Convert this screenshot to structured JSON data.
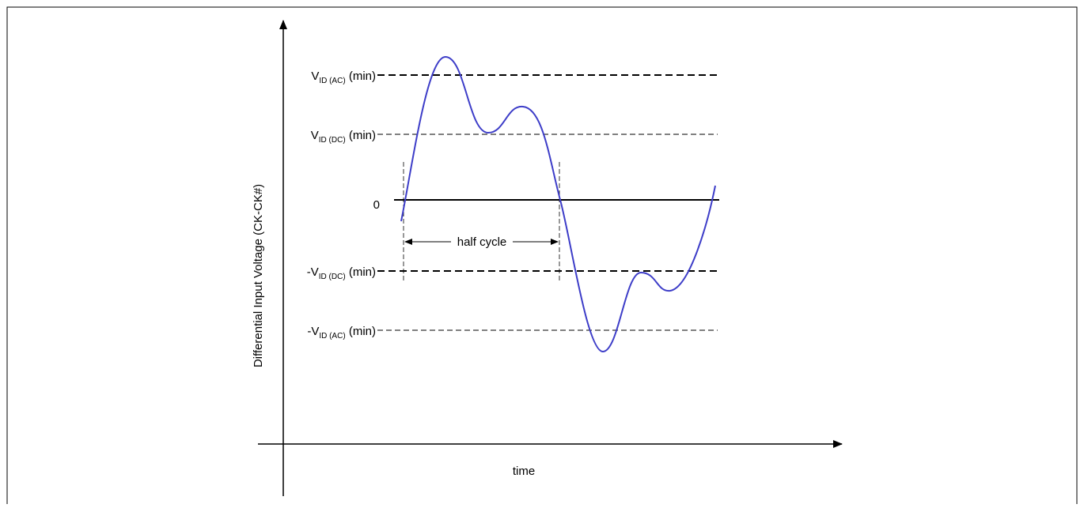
{
  "colors": {
    "waveform": "#3d3dc8",
    "lines": "#000000",
    "frame": "#000000",
    "background": "#ffffff"
  },
  "axes": {
    "y_label": "Differential Input Voltage (CK-CK#)",
    "x_label": "time"
  },
  "levels": {
    "vid_ac_pos": {
      "prefix": "V",
      "sub": "ID (AC)",
      "suffix": " (min)"
    },
    "vid_dc_pos": {
      "prefix": "V",
      "sub": "ID (DC)",
      "suffix": " (min)"
    },
    "zero": {
      "label": "0"
    },
    "vid_dc_neg": {
      "prefix": "-V",
      "sub": "ID (DC)",
      "suffix": " (min)"
    },
    "vid_ac_neg": {
      "prefix": "-V",
      "sub": "ID (AC)",
      "suffix": " (min)"
    }
  },
  "annotations": {
    "half_cycle": "half cycle"
  }
}
